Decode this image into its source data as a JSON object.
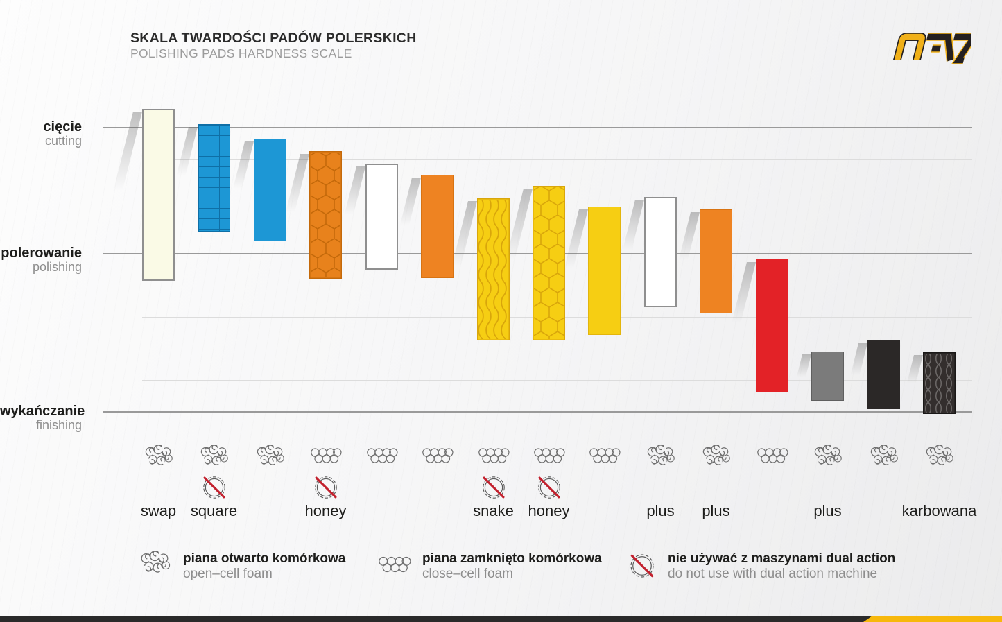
{
  "title": {
    "pl": "SKALA TWARDOŚCI PADÓW POLERSKICH",
    "en": "POLISHING PADS HARDNESS SCALE"
  },
  "brand": {
    "name": "NAC",
    "yellow": "#F0B019",
    "black": "#242021"
  },
  "chart_data": {
    "type": "bar",
    "subtype": "floating-range-columns",
    "title": "SKALA TWARDOŚCI PADÓW POLERSKICH / POLISHING PADS HARDNESS SCALE",
    "y_axis": {
      "unit": "hardness gridline steps (0 = cięcie/cutting line, 4 = polerowanie/polishing line, 9 = wykańczanie/finishing line)",
      "gridline_count": 10,
      "major_lines": [
        0,
        4,
        9
      ],
      "levels": [
        {
          "pl": "cięcie",
          "en": "cutting",
          "line": 0
        },
        {
          "pl": "polerowanie",
          "en": "polishing",
          "line": 4
        },
        {
          "pl": "wykańczanie",
          "en": "finishing",
          "line": 9
        }
      ]
    },
    "pads": [
      {
        "label": "swap",
        "foam": "open",
        "dual_action_ok": true,
        "range": [
          -0.6,
          4.85
        ],
        "color": "#FAFAE6",
        "pattern": "none",
        "pattern_color": "",
        "border": "#8F8F8F"
      },
      {
        "label": "square",
        "foam": "open",
        "dual_action_ok": false,
        "range": [
          -0.1,
          3.3
        ],
        "color": "#1D97D5",
        "pattern": "grid",
        "pattern_color": "#0F6FA6",
        "border": "#0F6FA6"
      },
      {
        "label": "",
        "foam": "open",
        "dual_action_ok": true,
        "range": [
          0.35,
          3.6
        ],
        "color": "#1D97D5",
        "pattern": "none",
        "pattern_color": "",
        "border": "#1283B9"
      },
      {
        "label": "honey",
        "foam": "close",
        "dual_action_ok": false,
        "range": [
          0.75,
          4.8
        ],
        "color": "#E8821C",
        "pattern": "hex-orange",
        "pattern_color": "#C4690A",
        "border": "#C4690A"
      },
      {
        "label": "",
        "foam": "close",
        "dual_action_ok": true,
        "range": [
          1.15,
          4.5
        ],
        "color": "#FFFFFF",
        "pattern": "none",
        "pattern_color": "",
        "border": "#8F8F8F"
      },
      {
        "label": "",
        "foam": "close",
        "dual_action_ok": true,
        "range": [
          1.5,
          4.78
        ],
        "color": "#EE8322",
        "pattern": "none",
        "pattern_color": "",
        "border": "#D87312"
      },
      {
        "label": "snake",
        "foam": "close",
        "dual_action_ok": false,
        "range": [
          2.25,
          6.75
        ],
        "color": "#F6CE13",
        "pattern": "wave-yellow",
        "pattern_color": "#D9A60B",
        "border": "#D9A60B"
      },
      {
        "label": "honey",
        "foam": "close",
        "dual_action_ok": false,
        "range": [
          1.85,
          6.75
        ],
        "color": "#F6CE13",
        "pattern": "hex-yellow",
        "pattern_color": "#D9A60B",
        "border": "#D9A60B"
      },
      {
        "label": "",
        "foam": "close",
        "dual_action_ok": true,
        "range": [
          2.5,
          6.57
        ],
        "color": "#F6CE13",
        "pattern": "none",
        "pattern_color": "",
        "border": "#E3B50C"
      },
      {
        "label": "plus",
        "foam": "open",
        "dual_action_ok": true,
        "range": [
          2.2,
          5.7
        ],
        "color": "#FFFFFF",
        "pattern": "none",
        "pattern_color": "",
        "border": "#8F8F8F"
      },
      {
        "label": "plus",
        "foam": "open",
        "dual_action_ok": true,
        "range": [
          2.6,
          5.9
        ],
        "color": "#EE8322",
        "pattern": "none",
        "pattern_color": "",
        "border": "#D87312"
      },
      {
        "label": "",
        "foam": "close",
        "dual_action_ok": true,
        "range": [
          4.18,
          8.4
        ],
        "color": "#E32227",
        "pattern": "none",
        "pattern_color": "",
        "border": "none"
      },
      {
        "label": "plus",
        "foam": "open",
        "dual_action_ok": true,
        "range": [
          7.1,
          8.65
        ],
        "color": "#7B7B7B",
        "pattern": "none",
        "pattern_color": "",
        "border": "#5F5F5F"
      },
      {
        "label": "",
        "foam": "open",
        "dual_action_ok": true,
        "range": [
          6.75,
          8.93
        ],
        "color": "#2B2827",
        "pattern": "none",
        "pattern_color": "",
        "border": "none"
      },
      {
        "label": "karbowana",
        "foam": "open",
        "dual_action_ok": true,
        "range": [
          7.12,
          9.07
        ],
        "color": "#332E2D",
        "pattern": "wave-dark",
        "pattern_color": "#8A8686",
        "border": "#1A1817"
      }
    ]
  },
  "legend": [
    {
      "icon": "open-cell-foam-icon",
      "pl": "piana otwarto komórkowa",
      "en": "open–cell foam"
    },
    {
      "icon": "close-cell-foam-icon",
      "pl": "piana zamknięto komórkowa",
      "en": "close–cell foam"
    },
    {
      "icon": "no-dual-action-icon",
      "pl": "nie używać z maszynami dual action",
      "en": "do not use with dual action machine"
    }
  ],
  "footer": {
    "black": "#2A2A2A",
    "yellow": "#F7B80C"
  }
}
